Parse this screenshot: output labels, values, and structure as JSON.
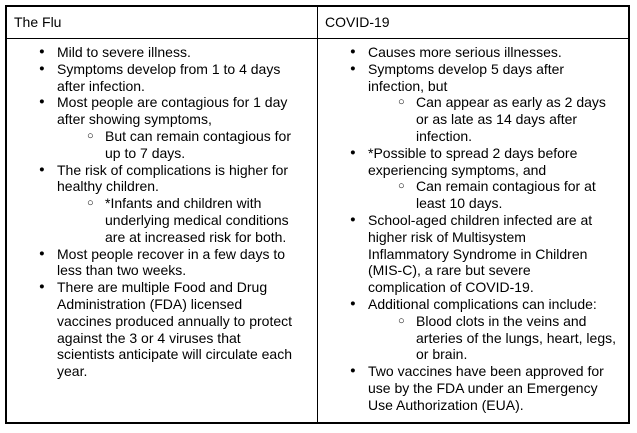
{
  "table": {
    "colors": {
      "border": "#000000",
      "text": "#000000",
      "background": "#ffffff"
    },
    "bullet_glyphs": {
      "level1": "●",
      "level2": "○"
    },
    "columns": [
      {
        "header": "The Flu",
        "items": [
          {
            "level": 1,
            "text": "Mild to severe illness."
          },
          {
            "level": 1,
            "text": "Symptoms develop from 1 to 4 days after infection."
          },
          {
            "level": 1,
            "text": "Most people are contagious for 1 day after showing symptoms,"
          },
          {
            "level": 2,
            "text": "But can remain contagious for up to 7 days."
          },
          {
            "level": 1,
            "text": "The risk of complications is higher for healthy children."
          },
          {
            "level": 2,
            "text": "*Infants and children with underlying medical conditions are at increased risk for both."
          },
          {
            "level": 1,
            "text": "Most people recover in a few days to less than two weeks."
          },
          {
            "level": 1,
            "text": "There are multiple Food and Drug Administration (FDA) licensed vaccines produced annually to protect against the 3 or 4 viruses that scientists anticipate will circulate each year."
          }
        ]
      },
      {
        "header": "COVID-19",
        "items": [
          {
            "level": 1,
            "text": "Causes more serious illnesses."
          },
          {
            "level": 1,
            "text": "Symptoms develop 5 days after infection, but"
          },
          {
            "level": 2,
            "text": "Can appear as early as 2 days or as late as 14 days after infection."
          },
          {
            "level": 1,
            "text": "*Possible to spread 2 days before experiencing symptoms, and"
          },
          {
            "level": 2,
            "text": "Can remain contagious for at least 10 days."
          },
          {
            "level": 1,
            "text": "School-aged children infected are at higher risk of Multisystem Inflammatory Syndrome in Children (MIS-C), a rare but severe complication of COVID-19."
          },
          {
            "level": 1,
            "text": "Additional complications can include:"
          },
          {
            "level": 2,
            "text": "Blood clots in the veins and arteries of the lungs, heart, legs, or brain."
          },
          {
            "level": 1,
            "text": "Two vaccines have been approved for use by the FDA under an Emergency Use Authorization (EUA)."
          }
        ]
      }
    ]
  }
}
